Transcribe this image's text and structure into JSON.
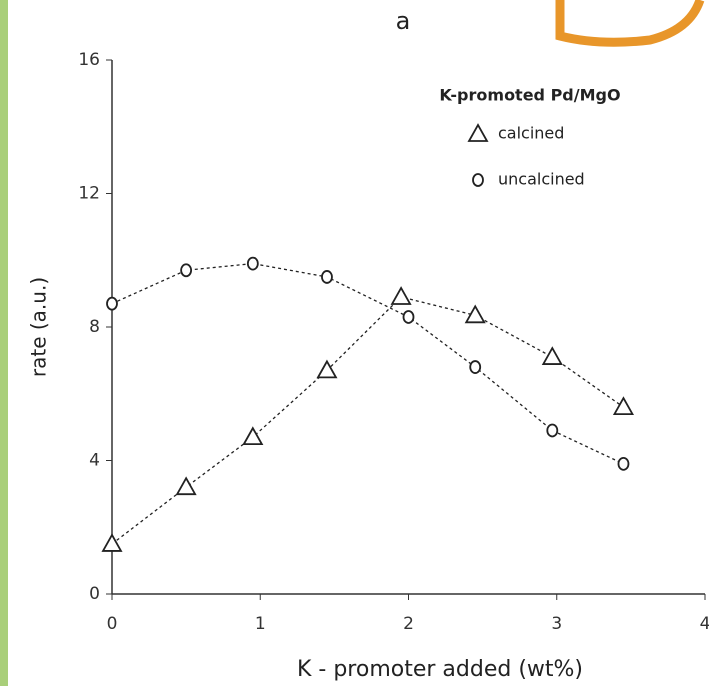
{
  "chart_data": {
    "type": "line",
    "title": "a",
    "x_label": "K - promoter added (wt%)",
    "y_label": "rate  (a.u.)",
    "legend_title": "K-promoted Pd/MgO",
    "xlim": [
      0,
      4
    ],
    "xticks": [
      0,
      1,
      2,
      3,
      4
    ],
    "ylim": [
      0,
      16
    ],
    "yticks": [
      0,
      4,
      8,
      12,
      16
    ],
    "series": [
      {
        "name": "calcined",
        "marker": "triangle",
        "color": "#222",
        "x": [
          0,
          0.5,
          0.95,
          1.45,
          1.95,
          2.45,
          2.97,
          3.45
        ],
        "values": [
          1.5,
          3.2,
          4.7,
          6.7,
          8.9,
          8.35,
          7.1,
          5.6
        ]
      },
      {
        "name": "uncalcined",
        "marker": "circle",
        "color": "#222",
        "x": [
          0,
          0.5,
          0.95,
          1.45,
          2.0,
          2.45,
          2.97,
          3.45
        ],
        "values": [
          8.7,
          9.7,
          9.9,
          9.5,
          8.3,
          6.8,
          4.9,
          3.9
        ]
      }
    ]
  }
}
